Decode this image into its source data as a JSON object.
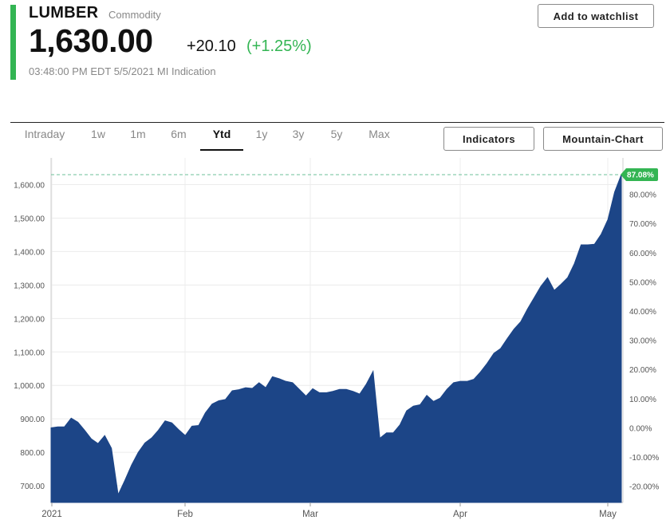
{
  "quote": {
    "symbol": "LUMBER",
    "type": "Commodity",
    "price": "1,630.00",
    "change": "+20.10",
    "change_pct": "(+1.25%)",
    "timestamp": "03:48:00 PM EDT 5/5/2021 MI Indication",
    "accent_color": "#33b553"
  },
  "header": {
    "watchlist_label": "Add to watchlist"
  },
  "toolbar": {
    "tabs": [
      {
        "label": "Intraday"
      },
      {
        "label": "1w"
      },
      {
        "label": "1m"
      },
      {
        "label": "6m"
      },
      {
        "label": "Ytd",
        "active": true
      },
      {
        "label": "1y"
      },
      {
        "label": "3y"
      },
      {
        "label": "5y"
      },
      {
        "label": "Max"
      }
    ],
    "indicators_label": "Indicators",
    "chart_type_label": "Mountain-Chart"
  },
  "chart_data": {
    "type": "area",
    "fill_color": "#1c4587",
    "x_ticks": [
      "2021",
      "Feb",
      "Mar",
      "Apr",
      "May"
    ],
    "y_ticks_left": [
      "1,600.00",
      "1,500.00",
      "1,400.00",
      "1,300.00",
      "1,200.00",
      "1,100.00",
      "1,000.00",
      "900.00",
      "800.00",
      "700.00"
    ],
    "y_ticks_right": [
      "80.00%",
      "70.00%",
      "60.00%",
      "50.00%",
      "40.00%",
      "30.00%",
      "20.00%",
      "10.00%",
      "0.00%",
      "-10.00%",
      "-20.00%"
    ],
    "ylim": [
      650,
      1680
    ],
    "last_pct_label": "87.08%",
    "reference_line": 1630,
    "values": [
      873,
      876,
      876,
      902,
      890,
      866,
      840,
      826,
      850,
      812,
      673,
      716,
      762,
      800,
      828,
      843,
      866,
      894,
      888,
      868,
      850,
      878,
      880,
      918,
      944,
      954,
      958,
      984,
      987,
      993,
      991,
      1008,
      993,
      1026,
      1020,
      1012,
      1008,
      988,
      968,
      990,
      978,
      978,
      982,
      988,
      988,
      982,
      974,
      1004,
      1042,
      842,
      858,
      858,
      882,
      924,
      938,
      942,
      970,
      952,
      962,
      988,
      1008,
      1012,
      1012,
      1018,
      1040,
      1066,
      1096,
      1110,
      1140,
      1168,
      1190,
      1228,
      1262,
      1296,
      1322,
      1284,
      1302,
      1322,
      1364,
      1420,
      1420,
      1422,
      1452,
      1496,
      1578,
      1630
    ]
  }
}
